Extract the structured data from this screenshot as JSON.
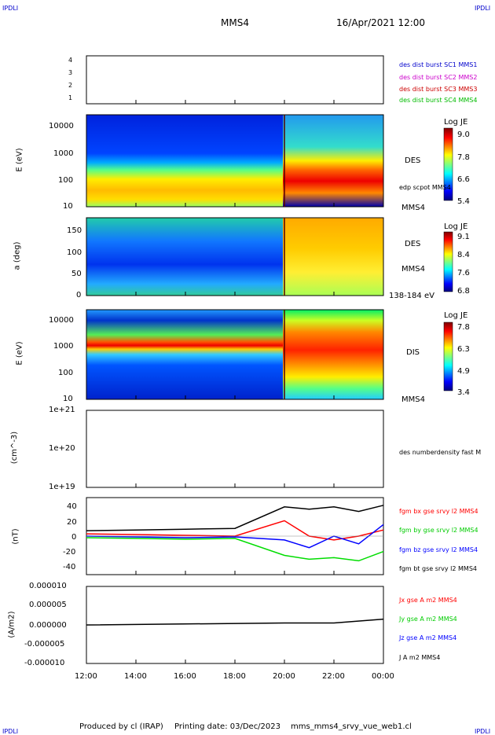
{
  "header": {
    "left_tag": "IPDLI",
    "right_tag": "IPDLI",
    "title": "MMS4",
    "date": "16/Apr/2021 12:00"
  },
  "footer": {
    "produced": "Produced by cl (IRAP)",
    "printing": "Printing date: 03/Dec/2023",
    "file": "mms_mms4_srvy_vue_web1.cl",
    "left_tag": "IPDLI",
    "right_tag": "IPDLI"
  },
  "x_ticks": [
    "12:00",
    "14:00",
    "16:00",
    "18:00",
    "20:00",
    "22:00",
    "00:00"
  ],
  "colors": {
    "sc1": "#0000cc",
    "sc2": "#cc00cc",
    "sc3": "#cc0000",
    "sc4": "#00bb00",
    "bx": "#ff0000",
    "by": "#00dd00",
    "bz": "#0000ff",
    "bt": "#000000"
  },
  "panels": {
    "burst": {
      "ticks": [
        "4",
        "3",
        "2",
        "1"
      ],
      "legend": [
        "des dist burst SC1 MMS1",
        "des dist burst SC2 MMS2",
        "des dist burst SC3 MMS3",
        "des dist burst SC4 MMS4"
      ]
    },
    "des_energy": {
      "ylabel": "E (eV)",
      "ticks": [
        "10000",
        "1000",
        "100",
        "10"
      ],
      "side": "DES",
      "side2": "edp scpot MMS4",
      "side3": "MMS4",
      "cb_title": "Log JE",
      "cb_ticks": [
        "9.0",
        "7.8",
        "6.6",
        "5.4"
      ]
    },
    "des_pitch": {
      "ylabel": "a (deg)",
      "ticks": [
        "150",
        "100",
        "50",
        "0"
      ],
      "side": "DES",
      "side2": "MMS4",
      "side3": "138-184 eV",
      "cb_title": "Log JE",
      "cb_ticks": [
        "9.1",
        "8.4",
        "7.6",
        "6.8"
      ]
    },
    "dis_energy": {
      "ylabel": "E (eV)",
      "ticks": [
        "10000",
        "1000",
        "100",
        "10"
      ],
      "side": "DIS",
      "side3": "MMS4",
      "cb_title": "Log JE",
      "cb_ticks": [
        "7.8",
        "6.3",
        "4.9",
        "3.4"
      ]
    },
    "density": {
      "ylabel": "(cm^-3)",
      "ticks": [
        "1e+21",
        "1e+20",
        "1e+19"
      ],
      "side": "des numberdensity fast M"
    },
    "bfield": {
      "ylabel": "(nT)",
      "ticks": [
        "40",
        "20",
        "0",
        "-20",
        "-40"
      ],
      "legend": [
        "fgm bx gse srvy l2 MMS4",
        "fgm by gse srvy l2 MMS4",
        "fgm bz gse srvy l2 MMS4",
        "fgm bt gse srvy l2 MMS4"
      ]
    },
    "current": {
      "ylabel": "(A/m2)",
      "ticks": [
        "0.000010",
        "0.000005",
        "0.000000",
        "-0.000005",
        "-0.000010"
      ],
      "legend": [
        "Jx gse A m2 MMS4",
        "Jy gse A m2 MMS4",
        "Jz gse A m2 MMS4",
        "J A m2 MMS4"
      ]
    }
  },
  "chart_data": {
    "type": "line",
    "x_range": [
      "12:00",
      "00:00"
    ],
    "boundary_time": "20:00",
    "bfield": {
      "ylim": [
        -50,
        50
      ],
      "series": [
        {
          "name": "fgm bx gse srvy l2 MMS4",
          "times": [
            "12:00",
            "14:00",
            "16:00",
            "18:00",
            "20:00",
            "21:00",
            "22:00",
            "23:00",
            "00:00"
          ],
          "values": [
            3,
            2,
            1,
            0,
            20,
            0,
            -5,
            0,
            8
          ]
        },
        {
          "name": "fgm by gse srvy l2 MMS4",
          "times": [
            "12:00",
            "14:00",
            "16:00",
            "18:00",
            "20:00",
            "21:00",
            "22:00",
            "23:00",
            "00:00"
          ],
          "values": [
            -2,
            -3,
            -4,
            -3,
            -25,
            -30,
            -28,
            -32,
            -20
          ]
        },
        {
          "name": "fgm bz gse srvy l2 MMS4",
          "times": [
            "12:00",
            "14:00",
            "16:00",
            "18:00",
            "20:00",
            "21:00",
            "22:00",
            "23:00",
            "00:00"
          ],
          "values": [
            0,
            -1,
            -2,
            -1,
            -5,
            -15,
            0,
            -10,
            15
          ]
        },
        {
          "name": "fgm bt gse srvy l2 MMS4",
          "times": [
            "12:00",
            "14:00",
            "16:00",
            "18:00",
            "20:00",
            "21:00",
            "22:00",
            "23:00",
            "00:00"
          ],
          "values": [
            7,
            8,
            9,
            10,
            38,
            35,
            38,
            32,
            40
          ]
        }
      ]
    },
    "current": {
      "ylim": [
        -1e-05,
        1e-05
      ],
      "series": [
        {
          "name": "J A m2 MMS4",
          "times": [
            "12:00",
            "20:00",
            "22:00",
            "00:00"
          ],
          "values": [
            0,
            5e-07,
            5e-07,
            1.5e-06
          ]
        }
      ]
    }
  }
}
